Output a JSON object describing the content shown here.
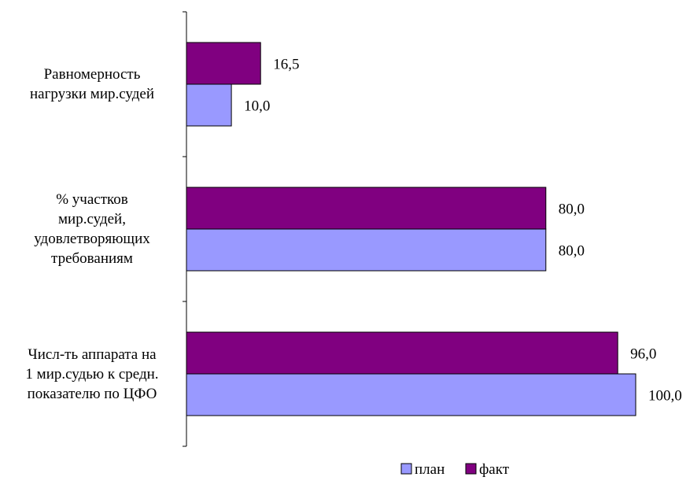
{
  "chart_data": {
    "type": "bar",
    "orientation": "horizontal",
    "categories": [
      [
        "Равномерность",
        "нагрузки мир.судей"
      ],
      [
        "% участков",
        "мир.судей,",
        "удовлетворяющих",
        "требованиям"
      ],
      [
        "Числ-ть аппарата на",
        "1 мир.судью к средн.",
        "показателю по ЦФО"
      ]
    ],
    "series": [
      {
        "name": "план",
        "values": [
          10.0,
          80.0,
          100.0
        ],
        "labels": [
          "10,0",
          "80,0",
          "100,0"
        ],
        "color": "#9999FF"
      },
      {
        "name": "факт",
        "values": [
          16.5,
          80.0,
          96.0
        ],
        "labels": [
          "16,5",
          "80,0",
          "96,0"
        ],
        "color": "#800080"
      }
    ],
    "xlim": [
      0,
      100
    ],
    "grid": false,
    "legend_position": "bottom"
  }
}
